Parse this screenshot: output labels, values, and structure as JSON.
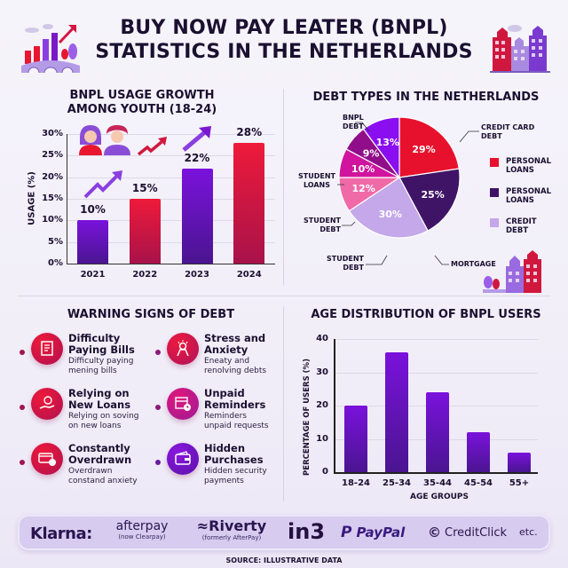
{
  "header": {
    "title_line1": "BUY NOW PAY LEATER (BNPL)",
    "title_line2": "STATISTICS IN THE NETHERLANDS",
    "left_icon": "growth-chart-bridge-icon",
    "right_icon": "dutch-canal-houses-icon"
  },
  "usage_section": {
    "title_line1": "BNPL USAGE GROWTH",
    "title_line2": "AMONG YOUTH (18-24)",
    "ylabel": "USAGE (%)",
    "yticks": [
      "30%",
      "25%",
      "20%",
      "15%",
      "10%",
      "5%",
      "0%"
    ],
    "illustration": "young-couple-icon"
  },
  "debt_section": {
    "title": "DEBT TYPES IN THE NETHERLANDS",
    "callouts": {
      "bnpl": [
        "BNPL",
        "DEBT"
      ],
      "credit_card": [
        "CREDIT CARD",
        "DEBT"
      ],
      "student_loans": [
        "STUDENT",
        "LOANS"
      ],
      "student_debt_1": [
        "STUDENT",
        "DEBT"
      ],
      "student_debt_2": [
        "STUDENT",
        "DEBT"
      ],
      "mortgage": [
        "MORTGAGE"
      ]
    },
    "legend": [
      {
        "line1": "PERSONAL",
        "line2": "LOANS",
        "color": "#e8112d"
      },
      {
        "line1": "PERSONAL",
        "line2": "LOANS",
        "color": "#3f1466"
      },
      {
        "line1": "CREDIT",
        "line2": "DEBT",
        "color": "#c4a8ea"
      }
    ]
  },
  "warning_section": {
    "title": "WARNING SIGNS OF DEBT",
    "items": [
      {
        "title1": "Difficulty",
        "title2": "Paying Bills",
        "desc1": "Difficulty paying",
        "desc2": "mening bills",
        "icon": "bill-document-icon",
        "color1": "#ee1a3a",
        "color2": "#b01050",
        "dot": "#a0164e"
      },
      {
        "title1": "Stress and",
        "title2": "Anxiety",
        "desc1": "Eneaty and",
        "desc2": "renolving debts",
        "icon": "stressed-person-icon",
        "color1": "#ec1a3f",
        "color2": "#b0125a",
        "dot": "#8b1a7a"
      },
      {
        "title1": "Relying on",
        "title2": "New Loans",
        "desc1": "Relying on soving",
        "desc2": "on new loans",
        "icon": "hand-coin-icon",
        "color1": "#ee1a3a",
        "color2": "#b01050",
        "dot": "#a0164e"
      },
      {
        "title1": "Unpaid",
        "title2": "Reminders",
        "desc1": "Reminders",
        "desc2": "unpaid requests",
        "icon": "calendar-clock-icon",
        "color1": "#e0187a",
        "color2": "#9c1a98",
        "dot": "#8b1a7a"
      },
      {
        "title1": "Constantly",
        "title2": "Overdrawn",
        "desc1": "Overdrawn",
        "desc2": "constand anxiety",
        "icon": "credit-card-coin-icon",
        "color1": "#ee1a3a",
        "color2": "#b01050",
        "dot": "#a0164e"
      },
      {
        "title1": "Hidden",
        "title2": "Purchases",
        "desc1": "Hidden security",
        "desc2": "payments",
        "icon": "wallet-icon",
        "color1": "#8a16e0",
        "color2": "#5a12a8",
        "dot": "#6a1aa0"
      }
    ]
  },
  "age_section": {
    "title": "AGE DISTRIBUTION OF BNPL USERS",
    "ylabel": "PERCENTAGE OF USERS (%)",
    "xlabel": "AGE GROUPS",
    "yticks": [
      "40",
      "30",
      "20",
      "10",
      "0"
    ]
  },
  "logos": {
    "klarna": "Klarna:",
    "afterpay": "afterpay",
    "afterpay_sub": "(now Clearpay)",
    "riverty": "Riverty",
    "riverty_sub": "(formerly AfterPay)",
    "in3": "in3",
    "paypal": "PayPal",
    "creditclick": "CreditClick",
    "etc": "etc."
  },
  "footer": {
    "source": "SOURCE: ILLUSTRATIVE DATA"
  },
  "chart_data": [
    {
      "type": "bar",
      "title": "BNPL USAGE GROWTH AMONG YOUTH (18-24)",
      "categories": [
        "2021",
        "2022",
        "2023",
        "2024"
      ],
      "values": [
        10,
        15,
        22,
        28
      ],
      "labels": [
        "10%",
        "15%",
        "22%",
        "28%"
      ],
      "colors": [
        "#6a14c8",
        "#e8162f",
        "#6012b8",
        "#e8162f"
      ],
      "xlabel": "",
      "ylabel": "USAGE (%)",
      "ylim": [
        0,
        30
      ],
      "yticks": [
        0,
        5,
        10,
        15,
        20,
        25,
        30
      ],
      "grid": true
    },
    {
      "type": "pie",
      "title": "DEBT TYPES IN THE NETHERLANDS",
      "slices": [
        {
          "label": "CREDIT CARD DEBT",
          "value": 29,
          "text": "29%",
          "color": "#e8112d"
        },
        {
          "label": "PERSONAL LOANS",
          "value": 25,
          "text": "25%",
          "color": "#3f1466"
        },
        {
          "label": "MORTGAGE",
          "value": 30,
          "text": "30%",
          "color": "#c4a8ea"
        },
        {
          "label": "STUDENT DEBT",
          "value": 12,
          "text": "12%",
          "color": "#f06aa8"
        },
        {
          "label": "STUDENT LOANS",
          "value": 10,
          "text": "10%",
          "color": "#d0149e"
        },
        {
          "label": "STUDENT DEBT",
          "value": 9,
          "text": "9%",
          "color": "#900e8a"
        },
        {
          "label": "BNPL DEBT",
          "value": 13,
          "text": "13%",
          "color": "#8a0ef0"
        }
      ],
      "legend": [
        "PERSONAL LOANS",
        "PERSONAL LOANS",
        "CREDIT DEBT"
      ],
      "legend_position": "right"
    },
    {
      "type": "bar",
      "title": "AGE DISTRIBUTION OF BNPL USERS",
      "categories": [
        "18-24",
        "25-34",
        "35-44",
        "45-54",
        "55+"
      ],
      "values": [
        20,
        36,
        24,
        12,
        6
      ],
      "xlabel": "AGE GROUPS",
      "ylabel": "PERCENTAGE OF USERS (%)",
      "ylim": [
        0,
        40
      ],
      "yticks": [
        0,
        10,
        20,
        30,
        40
      ],
      "grid": true
    }
  ]
}
